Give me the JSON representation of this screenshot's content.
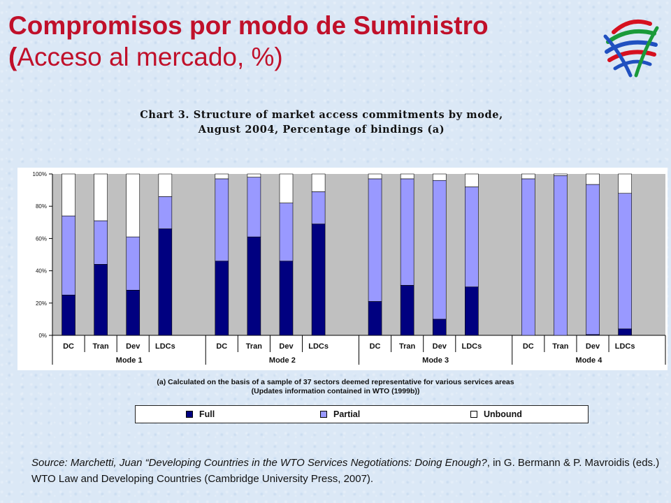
{
  "slide": {
    "title_bold": "Compromisos por modo de Suministro (",
    "title_rest": "Acceso al mercado, %)"
  },
  "chart_data": {
    "type": "bar",
    "stacked": true,
    "title_lines": [
      "Chart 3. Structure of market access commitments by mode,",
      "August 2004, Percentage of bindings (a)"
    ],
    "groups": [
      "Mode 1",
      "Mode 2",
      "Mode 3",
      "Mode 4"
    ],
    "categories": [
      "DC",
      "Tran",
      "Dev",
      "LDCs"
    ],
    "ylim": [
      0,
      100
    ],
    "yticks": [
      "0%",
      "20%",
      "40%",
      "60%",
      "80%",
      "100%"
    ],
    "series": [
      {
        "name": "Full",
        "color": "#000080",
        "values": [
          [
            25,
            44,
            28,
            66
          ],
          [
            46,
            61,
            46,
            69
          ],
          [
            21,
            31,
            10,
            30
          ],
          [
            0,
            0,
            0.5,
            4
          ]
        ]
      },
      {
        "name": "Partial",
        "color": "#9999ff",
        "values": [
          [
            49,
            27,
            33,
            20
          ],
          [
            51,
            37,
            36,
            20
          ],
          [
            76,
            66,
            86,
            62
          ],
          [
            97,
            99,
            93,
            84
          ]
        ]
      },
      {
        "name": "Unbound",
        "color": "#ffffff",
        "values": [
          [
            26,
            29,
            39,
            14
          ],
          [
            3,
            2,
            18,
            11
          ],
          [
            3,
            3,
            4,
            8
          ],
          [
            3,
            1,
            6.5,
            12
          ]
        ]
      }
    ],
    "grid": false,
    "legend": "bottom",
    "plot_background": "#c0c0c0"
  },
  "note": {
    "line1": "(a) Calculated on the basis of a sample of 37 sectors deemed representative for various services areas",
    "line2": "(Updates information contained in WTO (1999b))"
  },
  "legend": {
    "full": "Full",
    "partial": "Partial",
    "unbound": "Unbound"
  },
  "source": {
    "italic_part": "Source: Marchetti, Juan “Developing Countries in the WTO Services Negotiations: Doing Enough?",
    "rest": ", in G. Bermann & P. Mavroidis (eds.) WTO Law and Developing Countries (Cambridge University Press, 2007)."
  },
  "colors": {
    "title": "#c0102a",
    "full": "#000080",
    "partial": "#9999ff",
    "unbound": "#ffffff"
  },
  "icons": {
    "logo": "wto-logo-icon"
  }
}
